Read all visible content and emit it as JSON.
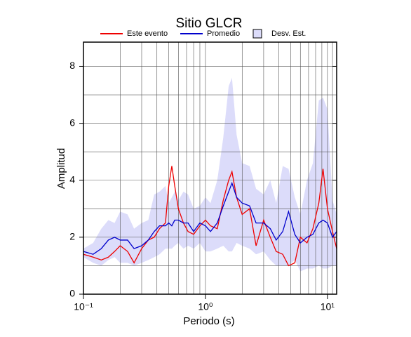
{
  "chart_data": {
    "type": "line",
    "title": "Sitio GLCR",
    "xlabel": "Periodo (s)",
    "ylabel": "Amplitud",
    "xscale": "log",
    "grid": true,
    "xlim": [
      0.1,
      11.9
    ],
    "ylim": [
      0,
      8.85
    ],
    "xticks": [
      {
        "value": 0.1,
        "label": "10⁻¹"
      },
      {
        "value": 1,
        "label": "10⁰"
      },
      {
        "value": 10,
        "label": "10¹"
      }
    ],
    "x_minor_ticks": [
      0.2,
      0.3,
      0.4,
      0.5,
      0.6,
      0.7,
      0.8,
      0.9,
      2,
      3,
      4,
      5,
      6,
      7,
      8,
      9,
      11
    ],
    "yticks": [
      0,
      2,
      4,
      6,
      8
    ],
    "y_minor_ticks": [
      1,
      3,
      5,
      7
    ],
    "x": [
      0.1,
      0.12,
      0.14,
      0.16,
      0.18,
      0.2,
      0.23,
      0.26,
      0.3,
      0.34,
      0.38,
      0.42,
      0.47,
      0.5,
      0.53,
      0.56,
      0.6,
      0.66,
      0.72,
      0.8,
      0.9,
      1.0,
      1.1,
      1.25,
      1.4,
      1.55,
      1.65,
      1.8,
      2.0,
      2.3,
      2.6,
      3.0,
      3.4,
      3.8,
      4.3,
      4.8,
      5.4,
      6.0,
      6.8,
      7.6,
      8.5,
      9.2,
      10,
      11,
      11.9
    ],
    "series": [
      {
        "name": "Este evento",
        "color": "#ee0000",
        "values": [
          1.4,
          1.3,
          1.2,
          1.3,
          1.5,
          1.7,
          1.5,
          1.1,
          1.6,
          1.9,
          2.0,
          2.3,
          2.5,
          3.8,
          4.5,
          3.8,
          3.0,
          2.5,
          2.2,
          2.1,
          2.4,
          2.6,
          2.4,
          2.3,
          3.3,
          4.0,
          4.3,
          3.4,
          2.8,
          3.0,
          1.7,
          2.6,
          2.0,
          1.5,
          1.4,
          1.0,
          1.1,
          2.0,
          1.8,
          2.3,
          3.2,
          4.4,
          3.0,
          2.2,
          1.6
        ]
      },
      {
        "name": "Promedio",
        "color": "#0000cc",
        "values": [
          1.5,
          1.4,
          1.6,
          1.9,
          2.0,
          1.9,
          1.9,
          1.6,
          1.7,
          1.9,
          2.2,
          2.4,
          2.4,
          2.5,
          2.4,
          2.6,
          2.6,
          2.5,
          2.5,
          2.2,
          2.5,
          2.4,
          2.2,
          2.5,
          3.1,
          3.6,
          3.9,
          3.4,
          3.2,
          3.1,
          2.5,
          2.5,
          2.3,
          1.9,
          2.2,
          2.9,
          2.1,
          1.8,
          2.0,
          2.1,
          2.5,
          2.6,
          2.5,
          2.0,
          2.2
        ]
      },
      {
        "name": "Desv. Est.",
        "color": "#dcdcfa",
        "upper": [
          1.6,
          1.8,
          2.3,
          2.6,
          2.5,
          2.9,
          2.8,
          2.3,
          2.5,
          2.6,
          3.5,
          3.6,
          3.8,
          3.2,
          3.4,
          3.6,
          3.3,
          3.6,
          3.5,
          3.0,
          3.1,
          3.4,
          3.2,
          4.0,
          5.5,
          7.3,
          7.6,
          5.6,
          4.6,
          4.5,
          3.7,
          3.5,
          4.0,
          3.2,
          4.5,
          4.4,
          3.4,
          2.8,
          4.0,
          4.6,
          6.8,
          6.9,
          6.5,
          3.3,
          2.8
        ],
        "lower": [
          1.3,
          1.1,
          1.0,
          1.2,
          1.3,
          1.1,
          1.1,
          1.0,
          1.1,
          1.2,
          1.3,
          1.4,
          1.6,
          1.6,
          1.6,
          1.7,
          1.8,
          1.6,
          1.7,
          1.6,
          1.8,
          1.5,
          1.5,
          1.6,
          1.7,
          1.5,
          1.5,
          1.8,
          1.7,
          1.6,
          1.4,
          1.5,
          1.2,
          1.0,
          1.0,
          1.0,
          1.2,
          0.8,
          0.9,
          0.9,
          1.0,
          0.9,
          0.9,
          1.0,
          1.0
        ]
      }
    ]
  }
}
